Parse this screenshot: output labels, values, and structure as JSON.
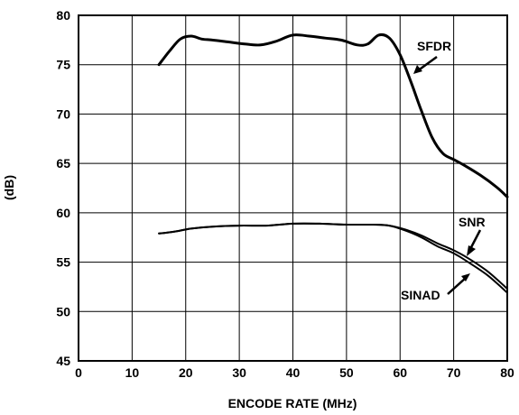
{
  "chart_data": {
    "type": "line",
    "xlabel": "ENCODE RATE (MHz)",
    "ylabel": "(dB)",
    "xlim": [
      0,
      80
    ],
    "ylim": [
      45,
      80
    ],
    "xticks": [
      0,
      10,
      20,
      30,
      40,
      50,
      60,
      70,
      80
    ],
    "yticks": [
      45,
      50,
      55,
      60,
      65,
      70,
      75,
      80
    ],
    "grid": true,
    "series": [
      {
        "name": "SFDR",
        "x": [
          15,
          17,
          19,
          21,
          23,
          25,
          28,
          31,
          34,
          37,
          40,
          43,
          46,
          49,
          52,
          54,
          56,
          58,
          60,
          62,
          64,
          66,
          68,
          70,
          72,
          75,
          78,
          80
        ],
        "y": [
          75.0,
          76.4,
          77.6,
          77.9,
          77.6,
          77.5,
          77.3,
          77.1,
          77.0,
          77.4,
          78.0,
          77.9,
          77.7,
          77.5,
          77.0,
          77.1,
          78.0,
          77.7,
          76.0,
          73.3,
          70.3,
          67.6,
          66.0,
          65.4,
          64.8,
          63.8,
          62.6,
          61.6
        ]
      },
      {
        "name": "SNR",
        "x": [
          15,
          18,
          21,
          25,
          30,
          35,
          40,
          45,
          50,
          55,
          58,
          61,
          64,
          67,
          70,
          73,
          76,
          78,
          80
        ],
        "y": [
          57.9,
          58.1,
          58.4,
          58.6,
          58.7,
          58.7,
          58.9,
          58.9,
          58.8,
          58.8,
          58.7,
          58.3,
          57.7,
          56.9,
          56.2,
          55.3,
          54.2,
          53.3,
          52.3
        ]
      },
      {
        "name": "SINAD",
        "x": [
          15,
          18,
          21,
          25,
          30,
          35,
          40,
          45,
          50,
          55,
          58,
          61,
          64,
          67,
          70,
          73,
          76,
          78,
          80
        ],
        "y": [
          57.9,
          58.1,
          58.4,
          58.6,
          58.7,
          58.7,
          58.9,
          58.9,
          58.8,
          58.8,
          58.7,
          58.2,
          57.5,
          56.6,
          55.9,
          54.9,
          53.8,
          52.9,
          51.9
        ]
      }
    ],
    "annotations": [
      {
        "text": "SFDR",
        "target_series": "SFDR"
      },
      {
        "text": "SNR",
        "target_series": "SNR"
      },
      {
        "text": "SINAD",
        "target_series": "SINAD"
      }
    ]
  }
}
